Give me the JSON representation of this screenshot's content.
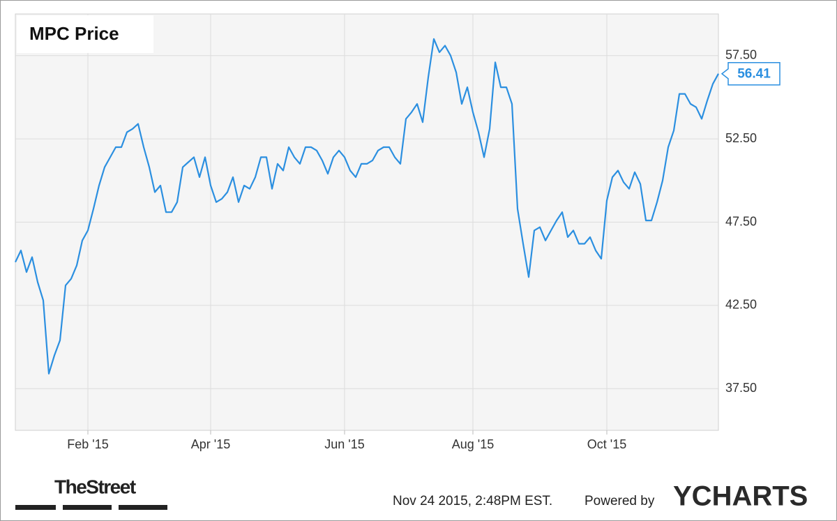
{
  "chart_data": {
    "type": "line",
    "title": "MPC Price",
    "categories": [
      null,
      null,
      null,
      null,
      null,
      null,
      null,
      null,
      null,
      null,
      null,
      null,
      null,
      "Feb '15",
      null,
      null,
      null,
      null,
      null,
      null,
      null,
      null,
      null,
      null,
      null,
      null,
      null,
      null,
      null,
      null,
      null,
      null,
      null,
      null,
      null,
      "Apr '15",
      null,
      null,
      null,
      null,
      null,
      null,
      null,
      null,
      null,
      null,
      null,
      null,
      null,
      null,
      null,
      null,
      null,
      null,
      null,
      null,
      null,
      null,
      null,
      "Jun '15",
      null,
      null,
      null,
      null,
      null,
      null,
      null,
      null,
      null,
      null,
      null,
      null,
      null,
      null,
      null,
      null,
      null,
      null,
      null,
      null,
      null,
      null,
      "Aug '15",
      null,
      null,
      null,
      null,
      null,
      null,
      null,
      null,
      null,
      null,
      null,
      null,
      null,
      null,
      null,
      null,
      null,
      null,
      null,
      null,
      null,
      null,
      null,
      "Oct '15",
      null,
      null,
      null,
      null,
      null,
      null,
      null,
      null,
      null,
      null,
      null,
      null,
      null,
      null,
      null,
      null,
      null,
      null,
      null,
      null
    ],
    "series": [
      {
        "name": "MPC Price",
        "color": "#2b8fe0",
        "values": [
          45.1,
          45.8,
          44.5,
          45.4,
          43.9,
          42.8,
          38.4,
          39.5,
          40.4,
          43.7,
          44.1,
          44.9,
          46.4,
          47.0,
          48.3,
          49.7,
          50.8,
          51.4,
          52.0,
          52.0,
          52.9,
          53.1,
          53.4,
          52.0,
          50.8,
          49.3,
          49.7,
          48.1,
          48.1,
          48.7,
          50.8,
          51.1,
          51.4,
          50.2,
          51.4,
          49.7,
          48.7,
          48.9,
          49.3,
          50.2,
          48.7,
          49.7,
          49.5,
          50.2,
          51.4,
          51.4,
          49.5,
          51.0,
          50.6,
          52.0,
          51.4,
          51.0,
          52.0,
          52.0,
          51.8,
          51.2,
          50.4,
          51.4,
          51.8,
          51.4,
          50.6,
          50.2,
          51.0,
          51.0,
          51.2,
          51.8,
          52.0,
          52.0,
          51.4,
          51.0,
          53.7,
          54.1,
          54.6,
          53.5,
          56.2,
          58.5,
          57.7,
          58.1,
          57.5,
          56.5,
          54.6,
          55.6,
          54.1,
          52.9,
          51.4,
          53.1,
          57.1,
          55.6,
          55.6,
          54.6,
          48.3,
          46.2,
          44.2,
          47.0,
          47.2,
          46.4,
          47.0,
          47.6,
          48.1,
          46.6,
          47.0,
          46.2,
          46.2,
          46.6,
          45.8,
          45.3,
          48.8,
          50.2,
          50.6,
          49.9,
          49.5,
          50.5,
          49.8,
          47.6,
          47.6,
          48.7,
          50.0,
          52.0,
          53.0,
          55.2,
          55.2,
          54.6,
          54.4,
          53.7,
          54.8,
          55.8,
          56.41
        ]
      }
    ],
    "ylim": [
      35,
      60
    ],
    "yticks": [
      {
        "value": 37.5,
        "label": "37.50"
      },
      {
        "value": 42.5,
        "label": "42.50"
      },
      {
        "value": 47.5,
        "label": "47.50"
      },
      {
        "value": 52.5,
        "label": "52.50"
      },
      {
        "value": 57.5,
        "label": "57.50"
      }
    ],
    "grid": true,
    "timestamp": "Nov 24 2015, 2:48PM EST.",
    "powered_by": "Powered by",
    "brand": "YCHARTS",
    "partner": "TheStreet"
  }
}
